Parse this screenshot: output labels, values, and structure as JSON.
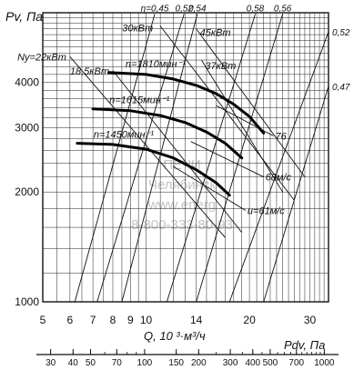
{
  "chart_data": {
    "type": "line",
    "title": "",
    "ylabel": "Pv, Па",
    "xlabel": "Q, 10 ³·м³/ч",
    "dyn_label": "Pdv, Па",
    "x_scale": "log",
    "y_scale": "log",
    "xlim": [
      5,
      34
    ],
    "ylim": [
      1000,
      6200
    ],
    "grid": true,
    "x_ticks": [
      5,
      6,
      7,
      8,
      9,
      10,
      14,
      20,
      30
    ],
    "y_ticks": [
      1000,
      2000,
      3000,
      4000
    ],
    "dyn_ticks": [
      30,
      40,
      50,
      70,
      100,
      150,
      200,
      300,
      400,
      500,
      700,
      1000
    ],
    "series": [
      {
        "name": "n=1810мин⁻¹",
        "x": [
          7.8,
          10,
          12,
          14,
          16,
          18,
          20,
          22
        ],
        "y": [
          4250,
          4200,
          4080,
          3920,
          3720,
          3480,
          3220,
          2900
        ]
      },
      {
        "name": "n=1615мин⁻¹",
        "x": [
          7.0,
          9,
          11,
          13,
          15,
          17,
          19
        ],
        "y": [
          3380,
          3340,
          3240,
          3100,
          2920,
          2720,
          2480
        ]
      },
      {
        "name": "n=1450мин⁻¹",
        "x": [
          6.3,
          8,
          10,
          12,
          14,
          16,
          17.5
        ],
        "y": [
          2720,
          2700,
          2620,
          2480,
          2300,
          2120,
          1960
        ]
      }
    ],
    "efficiency_lines": [
      {
        "label": "η=0,45",
        "x": [
          6.2,
          10.6
        ],
        "y": [
          1000,
          6150
        ]
      },
      {
        "label": "0,52",
        "x": [
          7.2,
          12.9
        ],
        "y": [
          1000,
          6150
        ]
      },
      {
        "label": "0,54",
        "x": [
          8.5,
          14.1
        ],
        "y": [
          1000,
          6150
        ]
      },
      {
        "label": "0,58",
        "x": [
          11.5,
          20.8
        ],
        "y": [
          1000,
          6150
        ]
      },
      {
        "label": "0,56",
        "x": [
          14.0,
          25.0
        ],
        "y": [
          1000,
          6150
        ]
      },
      {
        "label": "0,52",
        "x": [
          17.5,
          34.0
        ],
        "y": [
          1000,
          5500
        ]
      },
      {
        "label": "0,47",
        "x": [
          22.0,
          34.0
        ],
        "y": [
          1000,
          3900
        ]
      }
    ],
    "power_lines": [
      {
        "label": "30кВт",
        "x": [
          11.0,
          27.0
        ],
        "y": [
          5700,
          1900
        ]
      },
      {
        "label": "45кВт",
        "x": [
          14.0,
          29.0
        ],
        "y": [
          5600,
          2200
        ]
      },
      {
        "label": "37кВт",
        "x": [
          14.5,
          25.0
        ],
        "y": [
          4600,
          2000
        ]
      },
      {
        "label": "Ny=22кВт",
        "x": [
          6.0,
          17.0
        ],
        "y": [
          4700,
          1500
        ]
      },
      {
        "label": "18,5кВт",
        "x": [
          8.0,
          19.0
        ],
        "y": [
          4300,
          1550
        ]
      }
    ],
    "velocity_lines": [
      {
        "label": "76",
        "x": [
          16.0,
          23.5
        ],
        "y": [
          3450,
          2850
        ]
      },
      {
        "label": "68м/с",
        "x": [
          13.5,
          22.0
        ],
        "y": [
          2750,
          2200
        ]
      },
      {
        "label": "u=61м/с",
        "x": [
          12.0,
          19.5
        ],
        "y": [
          2350,
          1780
        ]
      }
    ],
    "watermark": [
      "ПЕЧИ",
      "Челябинск",
      "www.energ",
      "8-800-333-80-93"
    ]
  }
}
